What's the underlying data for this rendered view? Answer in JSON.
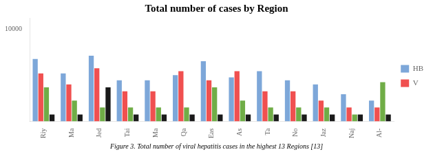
{
  "chart_data": {
    "type": "bar",
    "title": "Total number of cases by Region",
    "caption": "Figure 3. Total number of viral hepatitis cases in the highest 13 Regions [13]",
    "categories": [
      "Riy",
      "Ma",
      "Jed",
      "Tai",
      "Ma",
      "Qa",
      "Eas",
      "As",
      "Ta",
      "No",
      "Jaz",
      "Naj",
      "Al-"
    ],
    "series": [
      {
        "name": "HB",
        "color": "#7da7d9",
        "values": [
          500,
          120,
          700,
          60,
          60,
          100,
          400,
          80,
          150,
          60,
          40,
          15,
          8
        ]
      },
      {
        "name": "V",
        "color": "#f05050",
        "values": [
          120,
          40,
          200,
          20,
          20,
          150,
          60,
          150,
          20,
          20,
          8,
          4,
          4
        ]
      },
      {
        "color": "#70ad47",
        "values": [
          30,
          8,
          4,
          4,
          4,
          4,
          30,
          8,
          4,
          4,
          4,
          2,
          50
        ]
      },
      {
        "color": "#1a1a1a",
        "values": [
          2,
          2,
          30,
          2,
          2,
          2,
          2,
          2,
          2,
          2,
          2,
          2,
          2
        ]
      }
    ],
    "log": "y",
    "ylim": [
      1,
      30000
    ],
    "yticks": [
      10000
    ],
    "grid": false,
    "legend": "right"
  }
}
